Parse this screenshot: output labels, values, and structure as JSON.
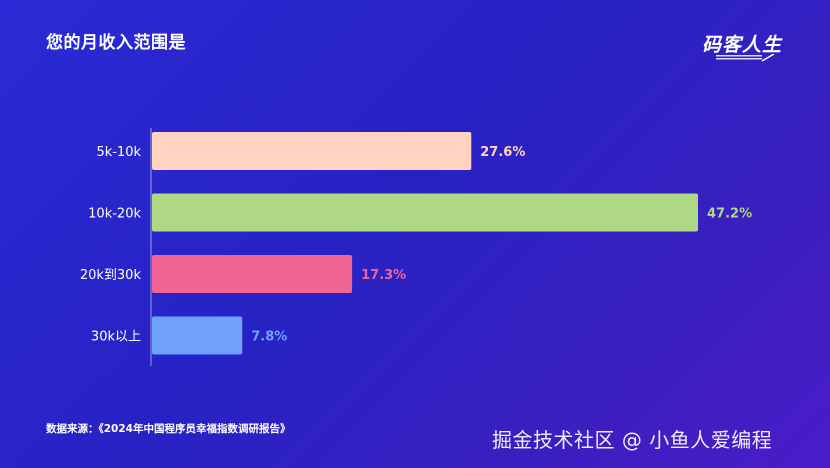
{
  "title": "您的月收入范围是",
  "logo": {
    "text": "码客人生"
  },
  "chart_data": {
    "type": "bar",
    "orientation": "horizontal",
    "title": "您的月收入范围是",
    "categories": [
      "5k-10k",
      "10k-20k",
      "20k到30k",
      "30k以上"
    ],
    "values": [
      27.6,
      47.2,
      17.3,
      7.8
    ],
    "value_labels": [
      "27.6%",
      "47.2%",
      "17.3%",
      "7.8%"
    ],
    "bar_colors": [
      "#ffd3bf",
      "#aed884",
      "#f06595",
      "#6fa1fb"
    ],
    "label_colors": [
      "#ffd3bf",
      "#aed884",
      "#f06595",
      "#6fa1fb"
    ],
    "xlim": [
      0,
      47.2
    ],
    "xlabel": "",
    "ylabel": "",
    "grid": false
  },
  "source": "数据来源：《2024年中国程序员幸福指数调研报告》",
  "watermark": "掘金技术社区 @ 小鱼人爱编程"
}
